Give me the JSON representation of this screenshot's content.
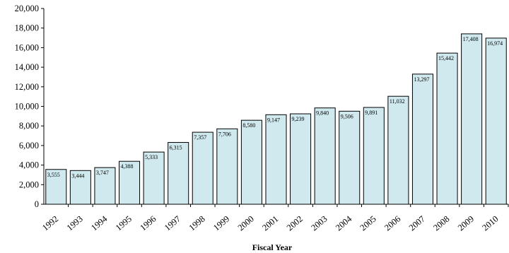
{
  "chart_data": {
    "type": "bar",
    "categories": [
      "1992",
      "1993",
      "1994",
      "1995",
      "1996",
      "1997",
      "1998",
      "1999",
      "2000",
      "2001",
      "2002",
      "2003",
      "2004",
      "2005",
      "2006",
      "2007",
      "2008",
      "2009",
      "2010"
    ],
    "values": [
      3555,
      3444,
      3747,
      4388,
      5333,
      6315,
      7357,
      7706,
      8580,
      9147,
      9239,
      9840,
      9506,
      9891,
      11032,
      13297,
      15442,
      17408,
      16974
    ],
    "data_labels": [
      "3,555",
      "3,444",
      "3,747",
      "4,388",
      "5,333",
      "6,315",
      "7,357",
      "7,706",
      "8,580",
      "9,147",
      "9,239",
      "9,840",
      "9,506",
      "9,891",
      "11,032",
      "13,297",
      "15,442",
      "17,408",
      "16,974"
    ],
    "ylim": [
      0,
      20000
    ],
    "y_ticks": [
      "0",
      "2,000",
      "4,000",
      "6,000",
      "8,000",
      "10,000",
      "12,000",
      "14,000",
      "16,000",
      "18,000",
      "20,000"
    ],
    "y_tick_values": [
      0,
      2000,
      4000,
      6000,
      8000,
      10000,
      12000,
      14000,
      16000,
      18000,
      20000
    ],
    "xlabel": "Fiscal Year",
    "ylabel": "",
    "grid": false,
    "legend": "none",
    "colors": {
      "bar_fill": "#cfe9ee",
      "bar_stroke": "#000000",
      "axis": "#000000"
    }
  }
}
